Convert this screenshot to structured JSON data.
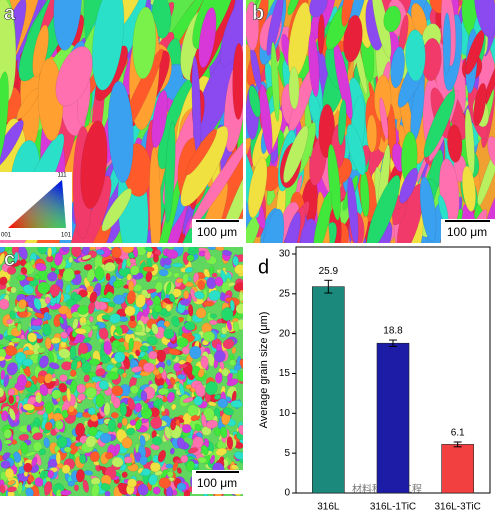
{
  "panels": {
    "labels": [
      "a",
      "b",
      "c",
      "d"
    ],
    "scale_bar": [
      "100 μm",
      "100 μm",
      "100 μm"
    ],
    "ipf": [
      "111",
      "001",
      "101"
    ],
    "watermark": "材料科学与工程"
  },
  "chart_data": {
    "type": "bar",
    "ylabel": "Average grain size (μm)",
    "categories": [
      "316L",
      "316L-1TiC",
      "316L-3TiC"
    ],
    "values": [
      25.9,
      18.8,
      6.1
    ],
    "errors": [
      0.8,
      0.4,
      0.3
    ],
    "colors": [
      "#1b8a7c",
      "#1c1ca6",
      "#f23f3f"
    ],
    "ylim": [
      0,
      30
    ],
    "yticks": [
      0,
      5,
      10,
      15,
      20,
      25,
      30
    ]
  }
}
